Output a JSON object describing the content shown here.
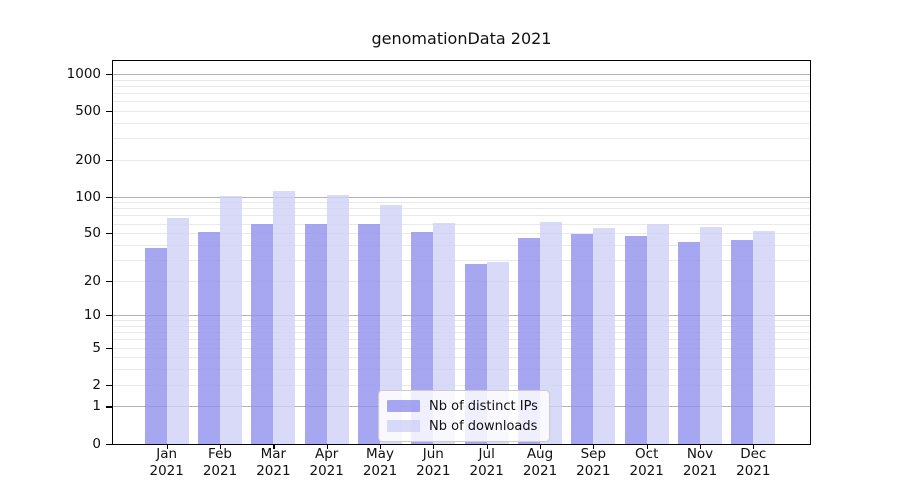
{
  "chart_data": {
    "type": "bar",
    "title": "genomationData 2021",
    "year_label": "2021",
    "categories": [
      "Jan",
      "Feb",
      "Mar",
      "Apr",
      "May",
      "Jun",
      "Jul",
      "Aug",
      "Sep",
      "Oct",
      "Nov",
      "Dec"
    ],
    "series": [
      {
        "name": "Nb of distinct IPs",
        "color": "rgba(144,144,237,0.8)",
        "values": [
          38,
          52,
          60,
          60,
          60,
          52,
          28,
          46,
          50,
          48,
          43,
          44
        ]
      },
      {
        "name": "Nb of downloads",
        "color": "rgba(207,207,246,0.8)",
        "values": [
          67,
          103,
          113,
          105,
          86,
          61,
          29,
          62,
          56,
          60,
          57,
          53
        ]
      }
    ],
    "xlabel": "",
    "ylabel": "",
    "yscale": "log1p",
    "ylim": [
      0,
      1300
    ],
    "yticks": [
      0,
      1,
      2,
      5,
      10,
      20,
      50,
      100,
      200,
      500,
      1000
    ],
    "grid": {
      "major": [
        1,
        10,
        100,
        1000
      ],
      "minor": [
        2,
        3,
        4,
        5,
        6,
        7,
        8,
        9,
        20,
        30,
        40,
        50,
        60,
        70,
        80,
        90,
        200,
        300,
        400,
        500,
        600,
        700,
        800,
        900
      ]
    },
    "legend_position": "bottom-center"
  }
}
